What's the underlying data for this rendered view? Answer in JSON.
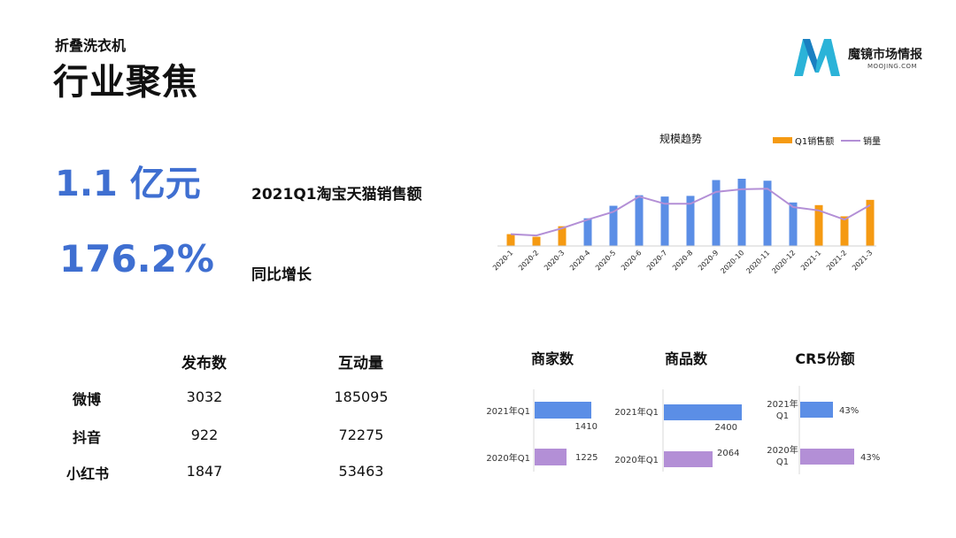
{
  "header": {
    "subtitle": "折叠洗衣机",
    "title": "行业聚焦"
  },
  "logo": {
    "name": "魔镜市场情报",
    "sub": "MOOJING.COM",
    "colors": {
      "primary": "#2bb3d8",
      "secondary": "#1a7fc1"
    }
  },
  "kpis": [
    {
      "value": "1.1 亿元",
      "label": "2021Q1淘宝天猫销售额"
    },
    {
      "value": "176.2%",
      "label": "同比增长"
    }
  ],
  "colors": {
    "blue": "#5b8ee6",
    "orange": "#f59a12",
    "purple": "#b38fd6",
    "kpi": "#3f6fd1"
  },
  "table": {
    "headers": [
      "发布数",
      "互动量"
    ],
    "rows": [
      {
        "platform": "微博",
        "posts": "3032",
        "interactions": "185095"
      },
      {
        "platform": "抖音",
        "posts": "922",
        "interactions": "72275"
      },
      {
        "platform": "小红书",
        "posts": "1847",
        "interactions": "53463"
      }
    ]
  },
  "chart_data": [
    {
      "type": "bar",
      "title": "规模趋势",
      "legend": [
        "Q1销售额",
        "销量"
      ],
      "legend_position": "top-right",
      "categories": [
        "2020-1",
        "2020-2",
        "2020-3",
        "2020-4",
        "2020-5",
        "2020-6",
        "2020-7",
        "2020-8",
        "2020-9",
        "2020-10",
        "2020-11",
        "2020-12",
        "2021-1",
        "2021-2",
        "2021-3"
      ],
      "highlight": [
        true,
        true,
        true,
        false,
        false,
        false,
        false,
        false,
        false,
        false,
        false,
        false,
        true,
        true,
        true
      ],
      "series": [
        {
          "name": "Q1销售额",
          "values": [
            18,
            14,
            30,
            42,
            61,
            77,
            75,
            76,
            100,
            102,
            99,
            66,
            62,
            45,
            70
          ]
        },
        {
          "name": "销量",
          "values": [
            18,
            16,
            27,
            40,
            52,
            75,
            64,
            64,
            82,
            86,
            87,
            59,
            54,
            40,
            62
          ]
        }
      ],
      "grid": false,
      "yaxis_visible": false
    },
    {
      "type": "bar",
      "title": "商家数",
      "categories": [
        "2021年Q1",
        "2020年Q1"
      ],
      "values": [
        1410,
        1225
      ]
    },
    {
      "type": "bar",
      "title": "商品数",
      "categories": [
        "2021年Q1",
        "2020年Q1"
      ],
      "values": [
        2400,
        2064
      ]
    },
    {
      "type": "bar",
      "title": "CR5份额",
      "categories": [
        "2021年\nQ1",
        "2020年\nQ1"
      ],
      "values": [
        43,
        43
      ],
      "value_labels": [
        "43%",
        "43%"
      ]
    }
  ]
}
